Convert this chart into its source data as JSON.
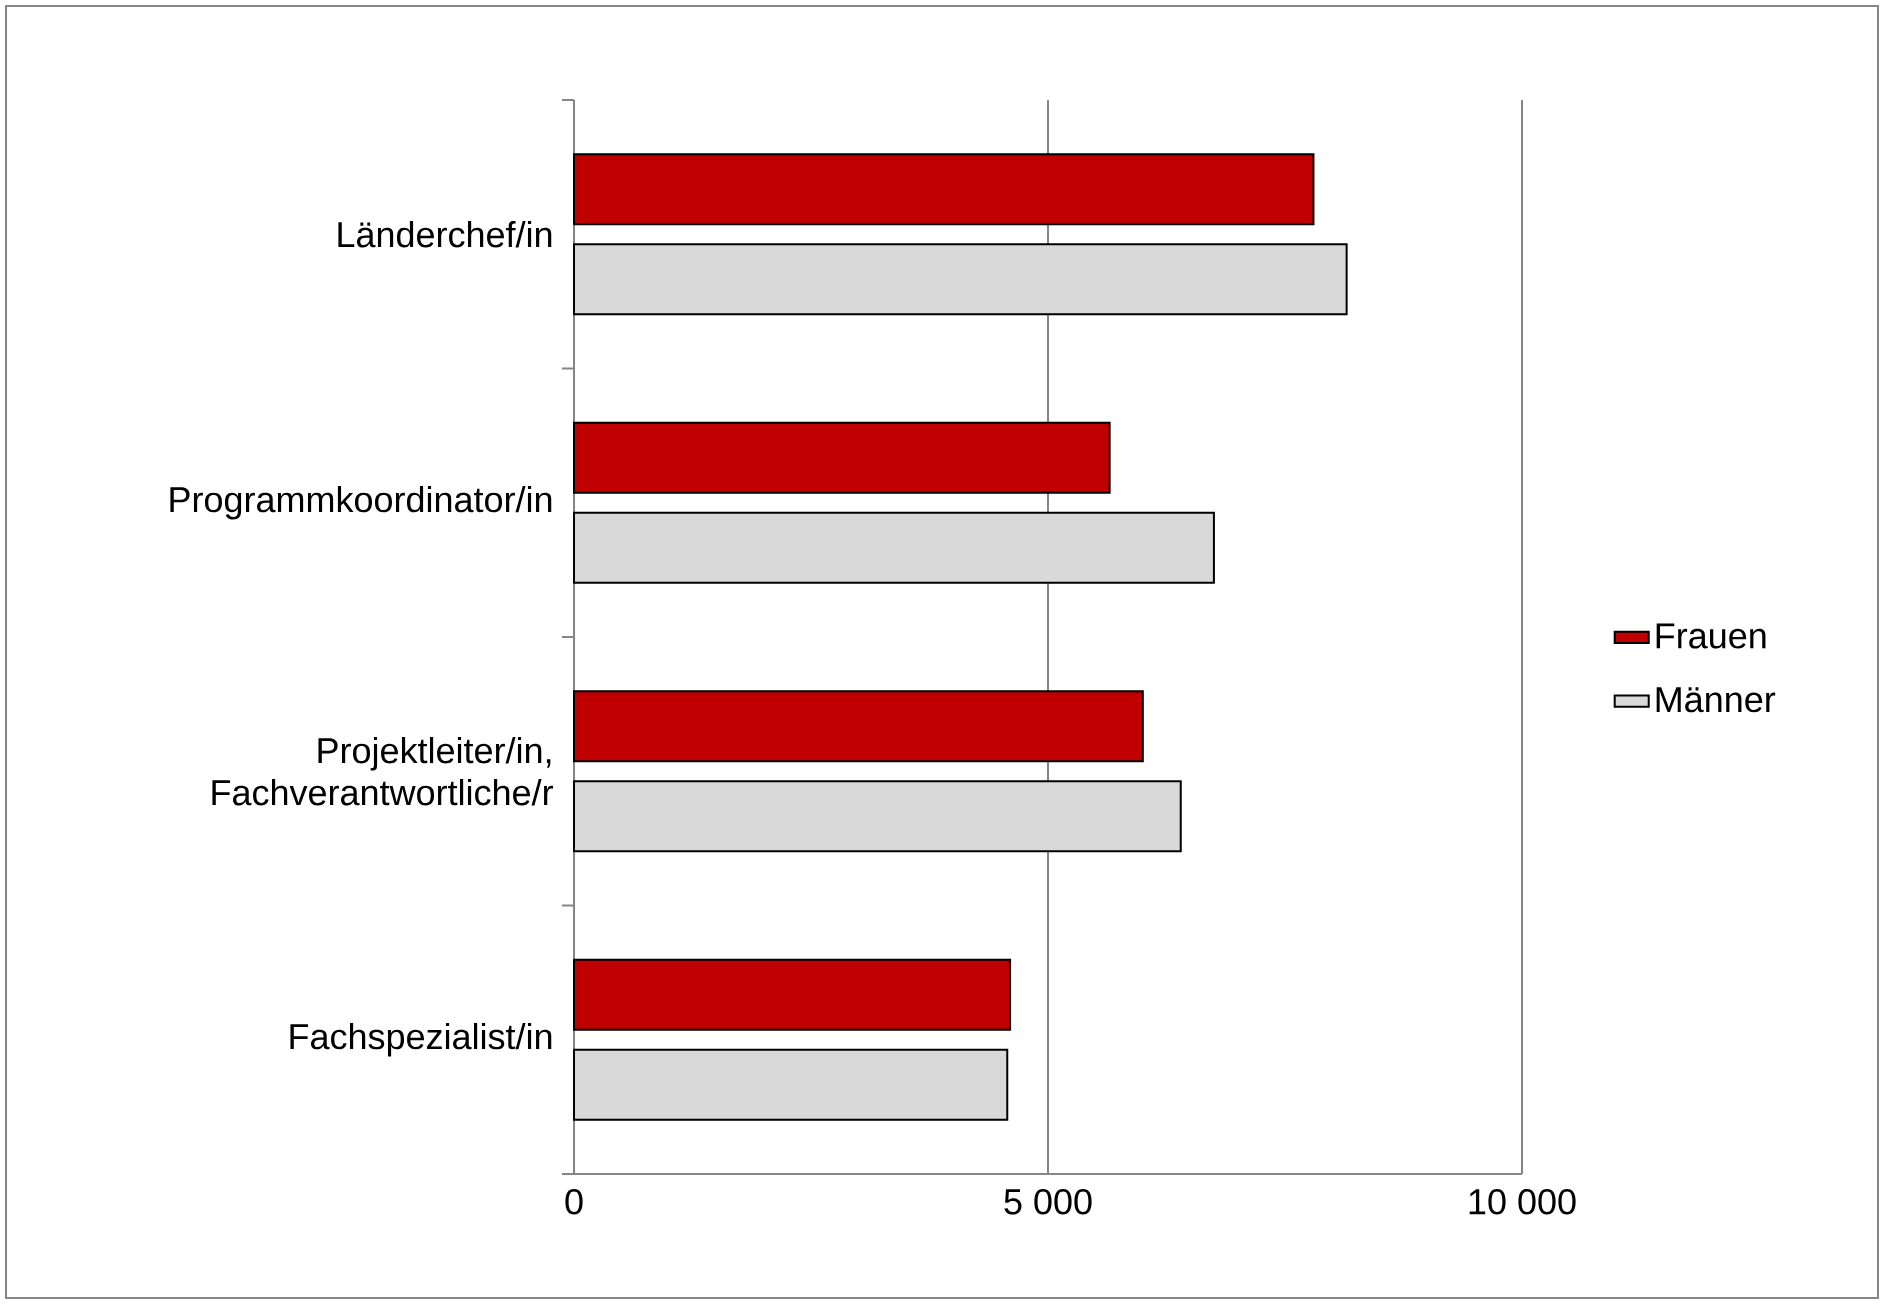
{
  "chart_data": {
    "type": "bar",
    "orientation": "horizontal",
    "categories": [
      "Länderchef/in",
      "Programmkoordinator/in",
      "Projektleiter/in, Fachverantwortliche/r",
      "Fachspezialist/in"
    ],
    "series": [
      {
        "name": "Frauen",
        "color": "#c00000",
        "values": [
          7800,
          5650,
          6000,
          4600
        ]
      },
      {
        "name": "Männer",
        "color": "#d9d9d9",
        "values": [
          8150,
          6750,
          6400,
          4570
        ]
      }
    ],
    "xlim": [
      0,
      10000
    ],
    "xticks": [
      0,
      {
        "value": 5000,
        "label": "5 000"
      },
      {
        "value": 10000,
        "label": "10 000"
      }
    ],
    "grid": "x",
    "legend": "right"
  }
}
